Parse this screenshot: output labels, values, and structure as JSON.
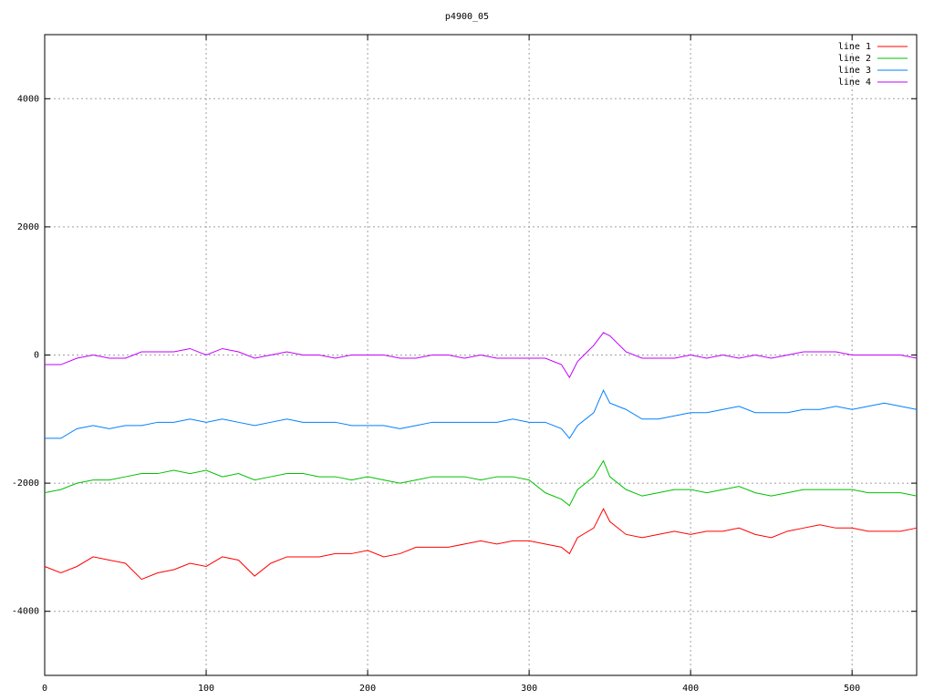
{
  "chart_data": {
    "type": "line",
    "title": "p4900_05",
    "x": [
      0,
      10,
      20,
      30,
      40,
      50,
      60,
      70,
      80,
      90,
      100,
      110,
      120,
      130,
      140,
      150,
      160,
      170,
      180,
      190,
      200,
      210,
      220,
      230,
      240,
      250,
      260,
      270,
      280,
      290,
      300,
      310,
      320,
      325,
      330,
      340,
      346,
      350,
      360,
      370,
      380,
      390,
      400,
      410,
      420,
      430,
      440,
      450,
      460,
      470,
      480,
      490,
      500,
      510,
      520,
      530,
      540
    ],
    "series": [
      {
        "name": "line 1",
        "color": "#ff0000",
        "values": [
          -3300,
          -3400,
          -3300,
          -3150,
          -3200,
          -3250,
          -3500,
          -3400,
          -3350,
          -3250,
          -3300,
          -3150,
          -3200,
          -3450,
          -3250,
          -3150,
          -3150,
          -3150,
          -3100,
          -3100,
          -3050,
          -3150,
          -3100,
          -3000,
          -3000,
          -3000,
          -2950,
          -2900,
          -2950,
          -2900,
          -2900,
          -2950,
          -3000,
          -3100,
          -2850,
          -2700,
          -2400,
          -2600,
          -2800,
          -2850,
          -2800,
          -2750,
          -2800,
          -2750,
          -2750,
          -2700,
          -2800,
          -2850,
          -2750,
          -2700,
          -2650,
          -2700,
          -2700,
          -2750,
          -2750,
          -2750,
          -2700
        ]
      },
      {
        "name": "line 2",
        "color": "#00c000",
        "values": [
          -2150,
          -2100,
          -2000,
          -1950,
          -1950,
          -1900,
          -1850,
          -1850,
          -1800,
          -1850,
          -1800,
          -1900,
          -1850,
          -1950,
          -1900,
          -1850,
          -1850,
          -1900,
          -1900,
          -1950,
          -1900,
          -1950,
          -2000,
          -1950,
          -1900,
          -1900,
          -1900,
          -1950,
          -1900,
          -1900,
          -1950,
          -2150,
          -2250,
          -2350,
          -2100,
          -1900,
          -1650,
          -1900,
          -2100,
          -2200,
          -2150,
          -2100,
          -2100,
          -2150,
          -2100,
          -2050,
          -2150,
          -2200,
          -2150,
          -2100,
          -2100,
          -2100,
          -2100,
          -2150,
          -2150,
          -2150,
          -2200
        ]
      },
      {
        "name": "line 3",
        "color": "#0080ff",
        "values": [
          -1300,
          -1300,
          -1150,
          -1100,
          -1150,
          -1100,
          -1100,
          -1050,
          -1050,
          -1000,
          -1050,
          -1000,
          -1050,
          -1100,
          -1050,
          -1000,
          -1050,
          -1050,
          -1050,
          -1100,
          -1100,
          -1100,
          -1150,
          -1100,
          -1050,
          -1050,
          -1050,
          -1050,
          -1050,
          -1000,
          -1050,
          -1050,
          -1150,
          -1300,
          -1100,
          -900,
          -550,
          -750,
          -850,
          -1000,
          -1000,
          -950,
          -900,
          -900,
          -850,
          -800,
          -900,
          -900,
          -900,
          -850,
          -850,
          -800,
          -850,
          -800,
          -750,
          -800,
          -850
        ]
      },
      {
        "name": "line 4",
        "color": "#c000ff",
        "values": [
          -150,
          -150,
          -50,
          0,
          -50,
          -50,
          50,
          50,
          50,
          100,
          0,
          100,
          50,
          -50,
          0,
          50,
          0,
          0,
          -50,
          0,
          0,
          0,
          -50,
          -50,
          0,
          0,
          -50,
          0,
          -50,
          -50,
          -50,
          -50,
          -150,
          -350,
          -100,
          150,
          350,
          300,
          50,
          -50,
          -50,
          -50,
          0,
          -50,
          0,
          -50,
          0,
          -50,
          0,
          50,
          50,
          50,
          0,
          0,
          0,
          0,
          -50
        ]
      }
    ],
    "xlim": [
      0,
      540
    ],
    "xticks": [
      0,
      100,
      200,
      300,
      400,
      500
    ],
    "ylim": [
      -5000,
      5000
    ],
    "yticks": [
      -4000,
      -2000,
      0,
      2000,
      4000
    ],
    "grid": true,
    "legend": "top-right"
  }
}
